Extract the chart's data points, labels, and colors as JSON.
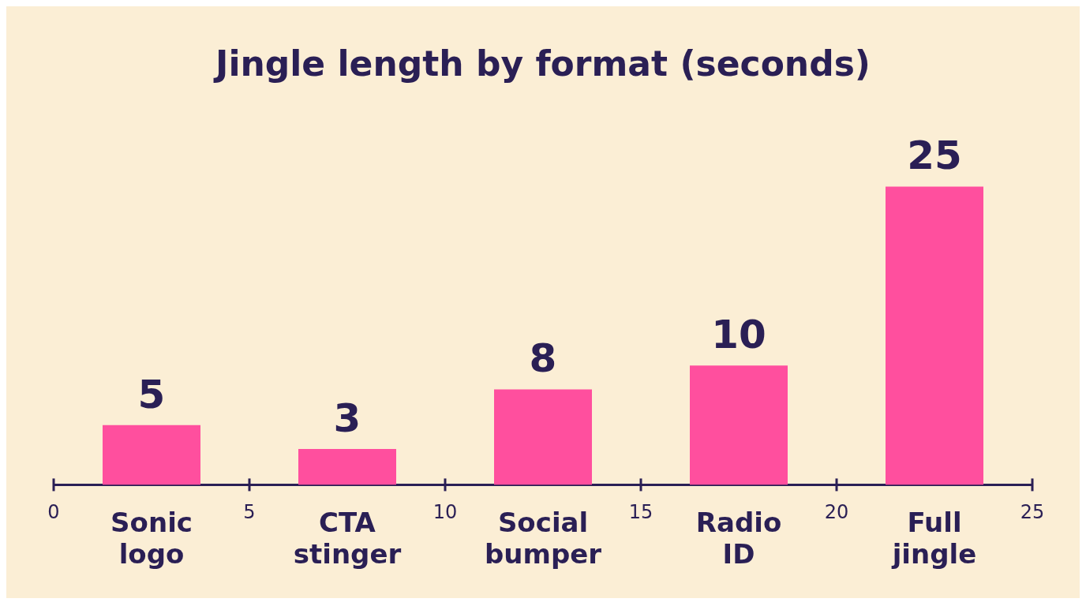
{
  "chart_data": {
    "type": "bar",
    "title": "Jingle length by format (seconds)",
    "categories": [
      "Sonic logo",
      "CTA stinger",
      "Social bumper",
      "Radio ID",
      "Full jingle"
    ],
    "values": [
      5,
      3,
      8,
      10,
      25
    ],
    "color": "#ff4f9e",
    "annotations": [
      "0",
      "5",
      "10",
      "15",
      "20",
      "25"
    ],
    "data_labels": true
  }
}
